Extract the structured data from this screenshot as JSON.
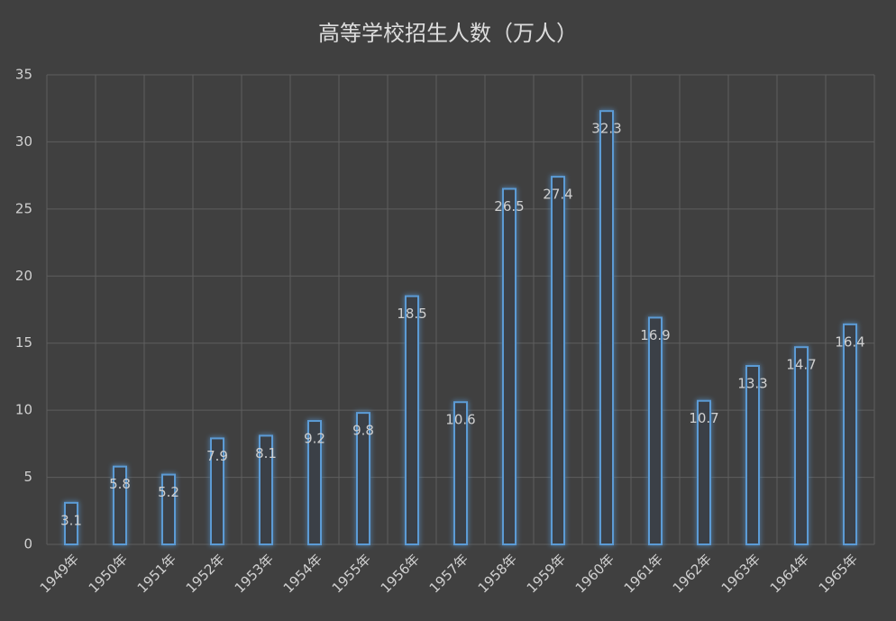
{
  "chart_data": {
    "type": "bar",
    "title": "高等学校招生人数（万人）",
    "categories": [
      "1949年",
      "1950年",
      "1951年",
      "1952年",
      "1953年",
      "1954年",
      "1955年",
      "1956年",
      "1957年",
      "1958年",
      "1959年",
      "1960年",
      "1961年",
      "1962年",
      "1963年",
      "1964年",
      "1965年"
    ],
    "values": [
      3.1,
      5.8,
      5.2,
      7.9,
      8.1,
      9.2,
      9.8,
      18.5,
      10.6,
      26.5,
      27.4,
      32.3,
      16.9,
      10.7,
      13.3,
      14.7,
      16.4
    ],
    "color": "#5b9bd5",
    "ylim": [
      0,
      35
    ],
    "yticks": [
      0,
      5,
      10,
      15,
      20,
      25,
      30,
      35
    ],
    "grid": true
  }
}
